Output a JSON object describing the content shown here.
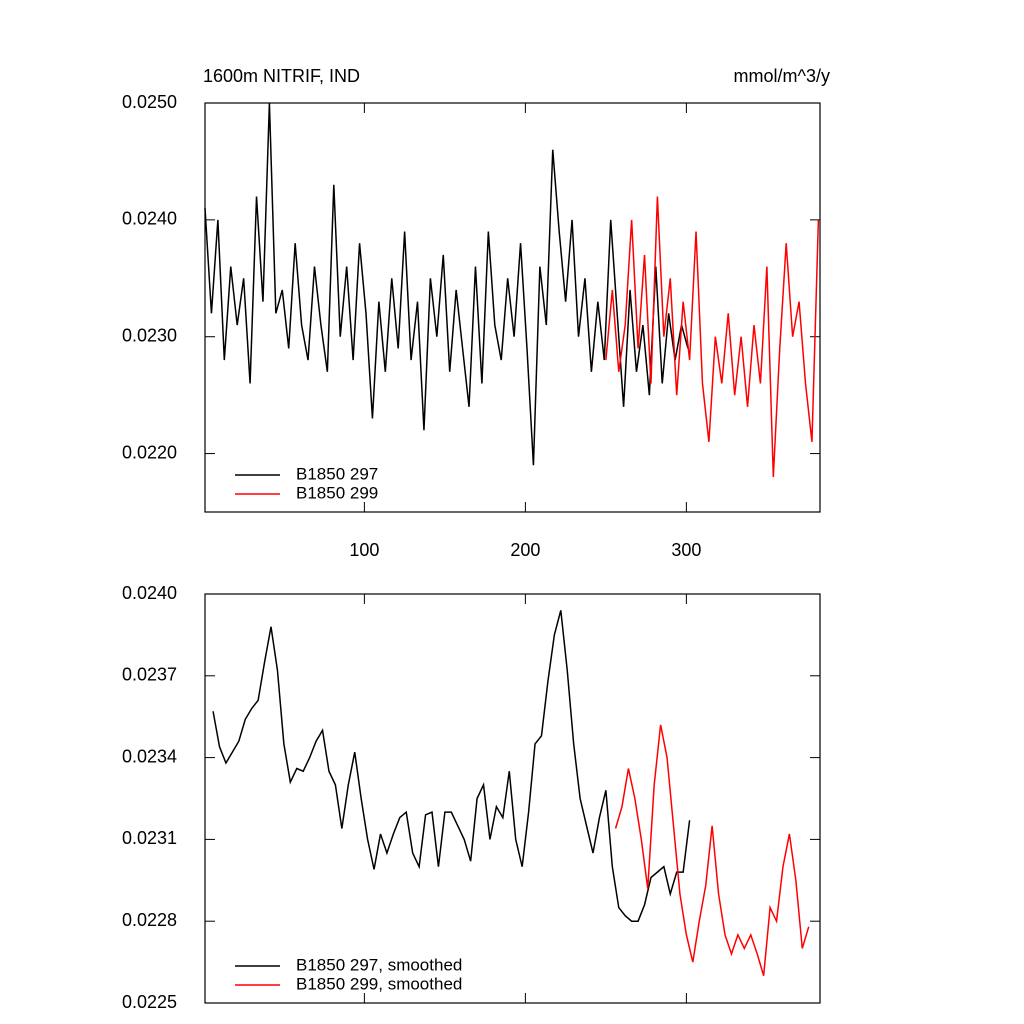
{
  "chart_data": [
    {
      "type": "line",
      "title": "1600m NITRIF, IND",
      "units": "mmol/m^3/y",
      "xlim": [
        1,
        383
      ],
      "xticks": [
        100,
        200,
        300
      ],
      "show_xtick_labels": true,
      "ylim": [
        0.0215,
        0.025
      ],
      "yticks": [
        {
          "value": 0.022,
          "label": "0.0220"
        },
        {
          "value": 0.023,
          "label": "0.0230"
        },
        {
          "value": 0.024,
          "label": "0.0240"
        },
        {
          "value": 0.025,
          "label": "0.0250"
        }
      ],
      "legend": "lower left",
      "series": [
        {
          "name": "B1850 297",
          "color": "#000000",
          "x": [
            1,
            5,
            9,
            13,
            17,
            21,
            25,
            29,
            33,
            37,
            41,
            45,
            49,
            53,
            57,
            61,
            65,
            69,
            73,
            77,
            81,
            85,
            89,
            93,
            97,
            101,
            105,
            109,
            113,
            117,
            121,
            125,
            129,
            133,
            137,
            141,
            145,
            149,
            153,
            157,
            161,
            165,
            169,
            173,
            177,
            181,
            185,
            189,
            193,
            197,
            201,
            205,
            209,
            213,
            217,
            221,
            225,
            229,
            233,
            237,
            241,
            245,
            249,
            253,
            257,
            261,
            265,
            269,
            273,
            277,
            281,
            285,
            289,
            293,
            297,
            301
          ],
          "values": [
            0.0241,
            0.0232,
            0.024,
            0.0228,
            0.0236,
            0.0231,
            0.0235,
            0.0226,
            0.0242,
            0.0233,
            0.025,
            0.0232,
            0.0234,
            0.0229,
            0.0238,
            0.0231,
            0.0228,
            0.0236,
            0.0231,
            0.0227,
            0.0243,
            0.023,
            0.0236,
            0.0228,
            0.0238,
            0.0232,
            0.0223,
            0.0233,
            0.0227,
            0.0235,
            0.0229,
            0.0239,
            0.0228,
            0.0233,
            0.0222,
            0.0235,
            0.023,
            0.0237,
            0.0227,
            0.0234,
            0.0229,
            0.0224,
            0.0236,
            0.0226,
            0.0239,
            0.0231,
            0.0228,
            0.0235,
            0.023,
            0.0238,
            0.0229,
            0.0219,
            0.0236,
            0.0231,
            0.0246,
            0.0239,
            0.0233,
            0.024,
            0.023,
            0.0235,
            0.0227,
            0.0233,
            0.0228,
            0.024,
            0.0232,
            0.0224,
            0.0234,
            0.0227,
            0.0231,
            0.0225,
            0.0236,
            0.0226,
            0.0232,
            0.0228,
            0.0231,
            0.0229
          ]
        },
        {
          "name": "B1850 299",
          "color": "#ff0000",
          "x": [
            250,
            254,
            258,
            262,
            266,
            270,
            274,
            278,
            282,
            286,
            290,
            294,
            298,
            302,
            306,
            310,
            314,
            318,
            322,
            326,
            330,
            334,
            338,
            342,
            346,
            350,
            354,
            358,
            362,
            366,
            370,
            374,
            378,
            382
          ],
          "values": [
            0.0228,
            0.0234,
            0.0227,
            0.0231,
            0.024,
            0.0229,
            0.0237,
            0.0226,
            0.0242,
            0.023,
            0.0235,
            0.0225,
            0.0233,
            0.0228,
            0.0239,
            0.0226,
            0.0221,
            0.023,
            0.0226,
            0.0232,
            0.0225,
            0.023,
            0.0224,
            0.0231,
            0.0226,
            0.0236,
            0.0218,
            0.0229,
            0.0238,
            0.023,
            0.0233,
            0.0226,
            0.0221,
            0.024
          ]
        }
      ]
    },
    {
      "type": "line",
      "xlim": [
        1,
        383
      ],
      "xticks": [
        100,
        200,
        300
      ],
      "show_xtick_labels": false,
      "ylim": [
        0.0225,
        0.024
      ],
      "yticks": [
        0.0225,
        0.0228,
        0.0231,
        0.0234,
        0.0237,
        {
          "value": 0.024,
          "label": "0.0240"
        }
      ],
      "legend": "lower left",
      "series": [
        {
          "name": "B1850 297, smoothed",
          "color": "#000000",
          "x": [
            6,
            10,
            14,
            18,
            22,
            26,
            30,
            34,
            38,
            42,
            46,
            50,
            54,
            58,
            62,
            66,
            70,
            74,
            78,
            82,
            86,
            90,
            94,
            98,
            102,
            106,
            110,
            114,
            118,
            122,
            126,
            130,
            134,
            138,
            142,
            146,
            150,
            154,
            158,
            162,
            166,
            170,
            174,
            178,
            182,
            186,
            190,
            194,
            198,
            202,
            206,
            210,
            214,
            218,
            222,
            226,
            230,
            234,
            238,
            242,
            246,
            250,
            254,
            258,
            262,
            266,
            270,
            274,
            278,
            282,
            286,
            290,
            294,
            298,
            302
          ],
          "values": [
            0.02357,
            0.02344,
            0.02338,
            0.02342,
            0.02346,
            0.02354,
            0.02358,
            0.02361,
            0.02375,
            0.02388,
            0.02372,
            0.02345,
            0.02331,
            0.02336,
            0.02335,
            0.0234,
            0.02346,
            0.0235,
            0.02335,
            0.0233,
            0.02314,
            0.0233,
            0.02342,
            0.02325,
            0.0231,
            0.02299,
            0.02312,
            0.02305,
            0.02312,
            0.02318,
            0.0232,
            0.02305,
            0.023,
            0.02319,
            0.0232,
            0.023,
            0.0232,
            0.0232,
            0.02315,
            0.0231,
            0.02302,
            0.02325,
            0.0233,
            0.0231,
            0.02322,
            0.02318,
            0.02335,
            0.0231,
            0.023,
            0.0232,
            0.02345,
            0.02348,
            0.02368,
            0.02385,
            0.02394,
            0.02372,
            0.02345,
            0.02325,
            0.02315,
            0.02305,
            0.02318,
            0.02328,
            0.023,
            0.02285,
            0.02282,
            0.0228,
            0.0228,
            0.02286,
            0.02296,
            0.02298,
            0.023,
            0.0229,
            0.02298,
            0.02298,
            0.02317
          ]
        },
        {
          "name": "B1850 299, smoothed",
          "color": "#ff0000",
          "x": [
            256,
            260,
            264,
            268,
            272,
            276,
            280,
            284,
            288,
            292,
            296,
            300,
            304,
            308,
            312,
            316,
            320,
            324,
            328,
            332,
            336,
            340,
            344,
            348,
            352,
            356,
            360,
            364,
            368,
            372,
            376
          ],
          "values": [
            0.02314,
            0.02322,
            0.02336,
            0.02325,
            0.0231,
            0.02292,
            0.0233,
            0.02352,
            0.0234,
            0.02315,
            0.0229,
            0.02275,
            0.02265,
            0.0228,
            0.02293,
            0.02315,
            0.0229,
            0.02275,
            0.02268,
            0.02275,
            0.0227,
            0.02275,
            0.02268,
            0.0226,
            0.02285,
            0.0228,
            0.023,
            0.02312,
            0.02295,
            0.0227,
            0.02278
          ]
        }
      ]
    }
  ]
}
